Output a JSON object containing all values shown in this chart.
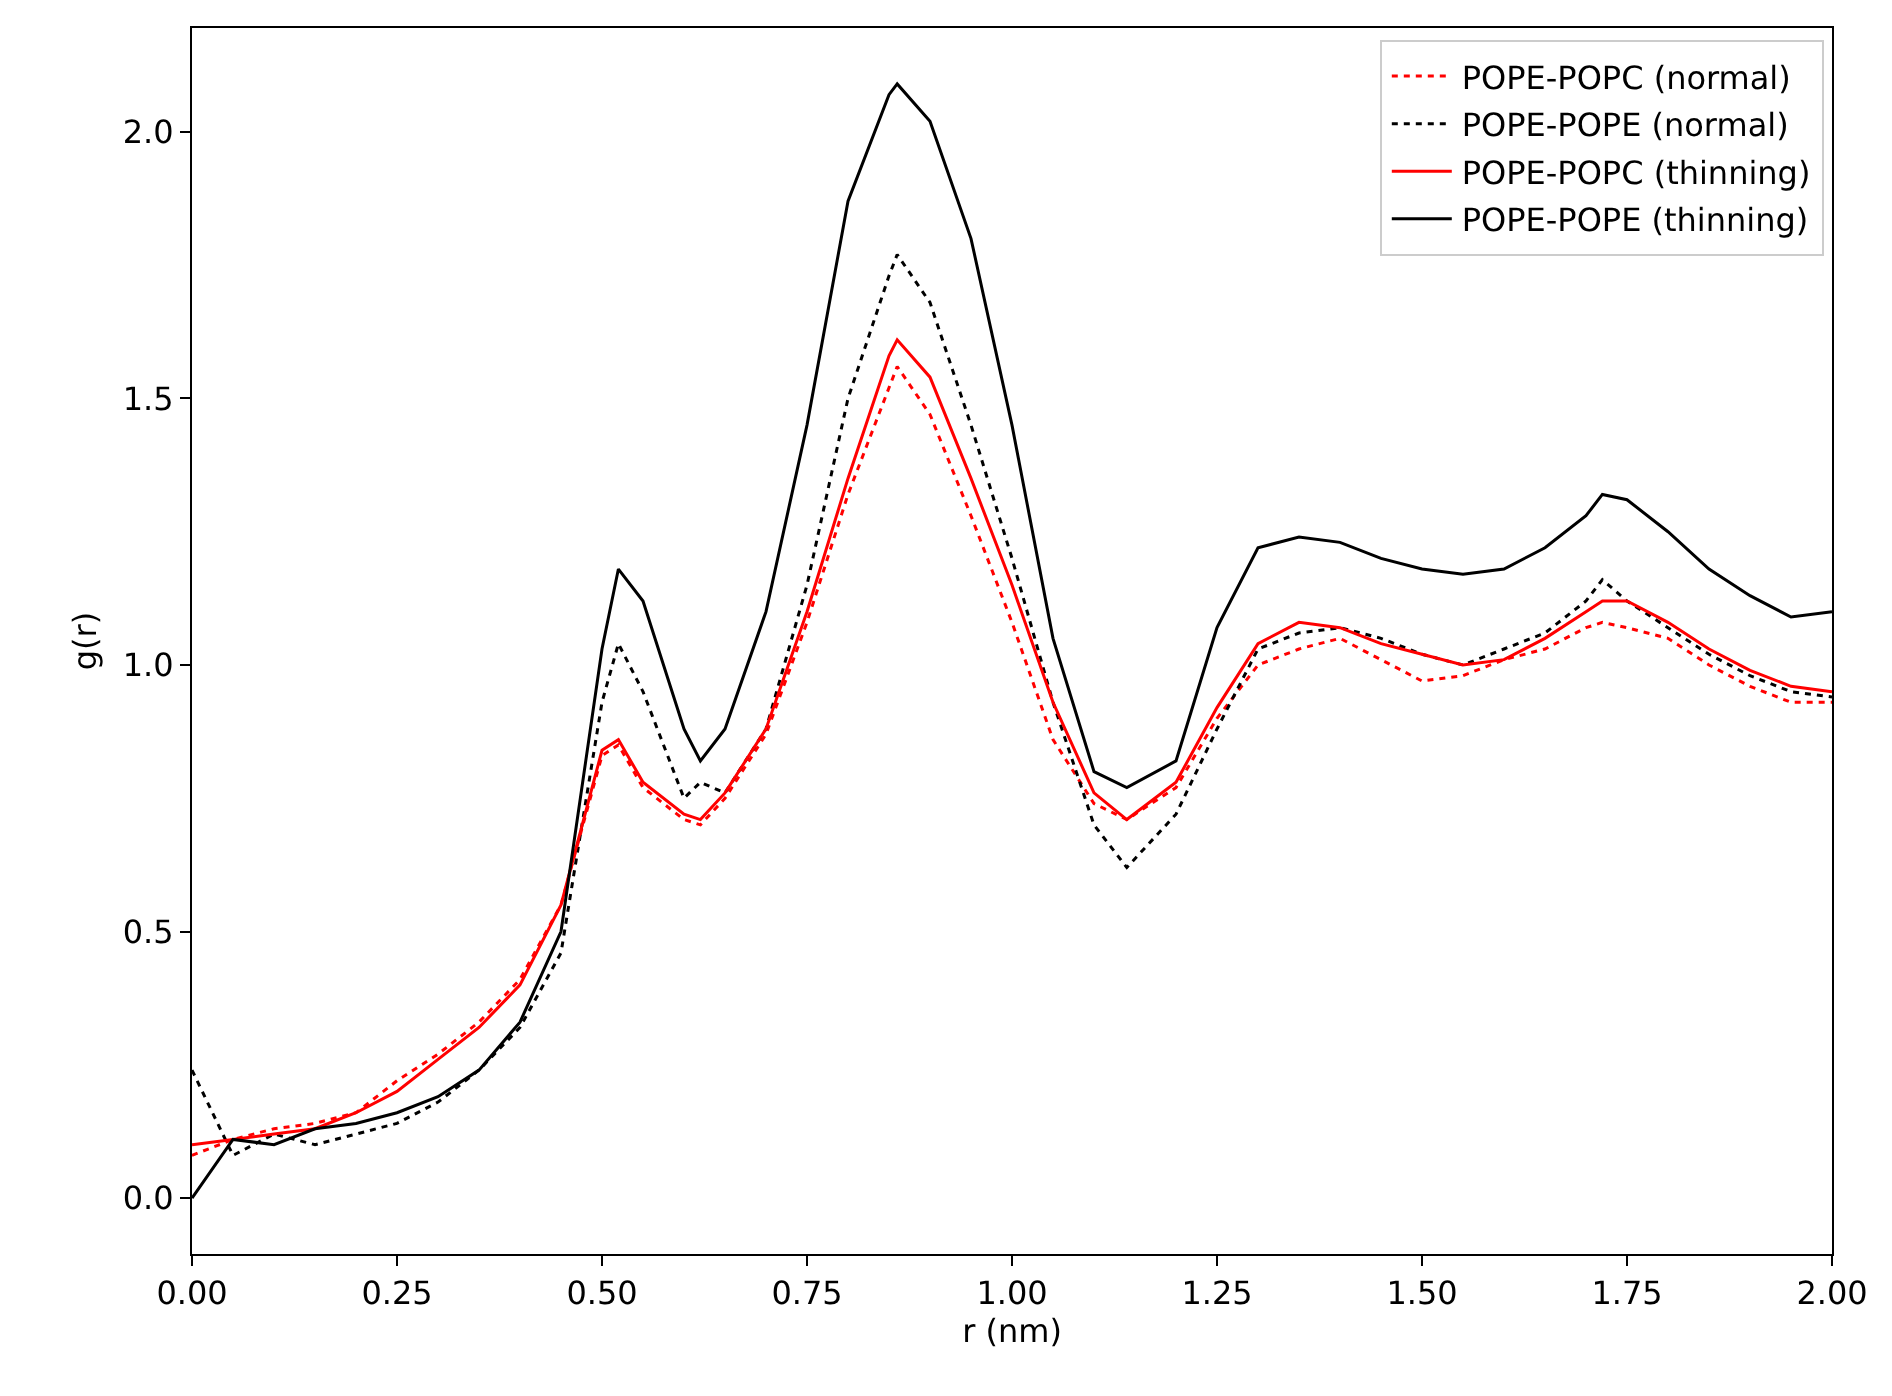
{
  "chart_data": {
    "type": "line",
    "xlabel": "r (nm)",
    "ylabel": "g(r)",
    "x": [
      0,
      0.05,
      0.1,
      0.15,
      0.2,
      0.25,
      0.3,
      0.35,
      0.4,
      0.45,
      0.5,
      0.52,
      0.55,
      0.6,
      0.62,
      0.65,
      0.7,
      0.75,
      0.8,
      0.85,
      0.86,
      0.9,
      0.95,
      1.0,
      1.05,
      1.1,
      1.14,
      1.2,
      1.25,
      1.3,
      1.35,
      1.4,
      1.45,
      1.5,
      1.55,
      1.6,
      1.65,
      1.7,
      1.72,
      1.75,
      1.8,
      1.85,
      1.9,
      1.95,
      2.0
    ],
    "series": [
      {
        "name": "POPE-POPC (normal)",
        "color": "#ff0000",
        "line_style": "dotted",
        "values": [
          0.08,
          0.11,
          0.13,
          0.14,
          0.16,
          0.22,
          0.27,
          0.33,
          0.41,
          0.55,
          0.83,
          0.85,
          0.77,
          0.71,
          0.7,
          0.75,
          0.87,
          1.08,
          1.32,
          1.52,
          1.56,
          1.47,
          1.28,
          1.08,
          0.86,
          0.74,
          0.71,
          0.77,
          0.9,
          1.0,
          1.03,
          1.05,
          1.01,
          0.97,
          0.98,
          1.01,
          1.03,
          1.07,
          1.08,
          1.07,
          1.05,
          1.0,
          0.96,
          0.93,
          0.93
        ]
      },
      {
        "name": "POPE-POPE (normal)",
        "color": "#000000",
        "line_style": "dotted",
        "values": [
          0.24,
          0.08,
          0.12,
          0.1,
          0.12,
          0.14,
          0.18,
          0.24,
          0.32,
          0.46,
          0.93,
          1.04,
          0.95,
          0.75,
          0.78,
          0.76,
          0.88,
          1.15,
          1.5,
          1.73,
          1.77,
          1.68,
          1.45,
          1.2,
          0.93,
          0.7,
          0.62,
          0.72,
          0.88,
          1.03,
          1.06,
          1.07,
          1.05,
          1.02,
          1.0,
          1.03,
          1.06,
          1.12,
          1.16,
          1.12,
          1.07,
          1.02,
          0.98,
          0.95,
          0.94
        ]
      },
      {
        "name": "POPE-POPC (thinning)",
        "color": "#ff0000",
        "line_style": "solid",
        "values": [
          0.1,
          0.11,
          0.12,
          0.13,
          0.16,
          0.2,
          0.26,
          0.32,
          0.4,
          0.55,
          0.84,
          0.86,
          0.78,
          0.72,
          0.71,
          0.76,
          0.88,
          1.1,
          1.35,
          1.58,
          1.61,
          1.54,
          1.35,
          1.15,
          0.93,
          0.76,
          0.71,
          0.78,
          0.92,
          1.04,
          1.08,
          1.07,
          1.04,
          1.02,
          1.0,
          1.01,
          1.05,
          1.1,
          1.12,
          1.12,
          1.08,
          1.03,
          0.99,
          0.96,
          0.95
        ]
      },
      {
        "name": "POPE-POPE (thinning)",
        "color": "#000000",
        "line_style": "solid",
        "values": [
          0,
          0.11,
          0.1,
          0.13,
          0.14,
          0.16,
          0.19,
          0.24,
          0.33,
          0.5,
          1.03,
          1.18,
          1.12,
          0.88,
          0.82,
          0.88,
          1.1,
          1.45,
          1.87,
          2.07,
          2.09,
          2.02,
          1.8,
          1.45,
          1.05,
          0.8,
          0.77,
          0.82,
          1.07,
          1.22,
          1.24,
          1.23,
          1.2,
          1.18,
          1.17,
          1.18,
          1.22,
          1.28,
          1.32,
          1.31,
          1.25,
          1.18,
          1.13,
          1.09,
          1.1
        ]
      }
    ],
    "xlim": [
      0,
      2
    ],
    "ylim": [
      -0.105,
      2.195
    ],
    "xticks": [
      {
        "value": 0,
        "label": "0.00"
      },
      {
        "value": 0.25,
        "label": "0.25"
      },
      {
        "value": 0.5,
        "label": "0.50"
      },
      {
        "value": 0.75,
        "label": "0.75"
      },
      {
        "value": 1,
        "label": "1.00"
      },
      {
        "value": 1.25,
        "label": "1.25"
      },
      {
        "value": 1.5,
        "label": "1.50"
      },
      {
        "value": 1.75,
        "label": "1.75"
      },
      {
        "value": 2,
        "label": "2.00"
      }
    ],
    "yticks": [
      {
        "value": 0,
        "label": "0.0"
      },
      {
        "value": 0.5,
        "label": "0.5"
      },
      {
        "value": 1,
        "label": "1.0"
      },
      {
        "value": 1.5,
        "label": "1.5"
      },
      {
        "value": 2,
        "label": "2.0"
      }
    ],
    "legend": "top right",
    "marker": "none"
  }
}
